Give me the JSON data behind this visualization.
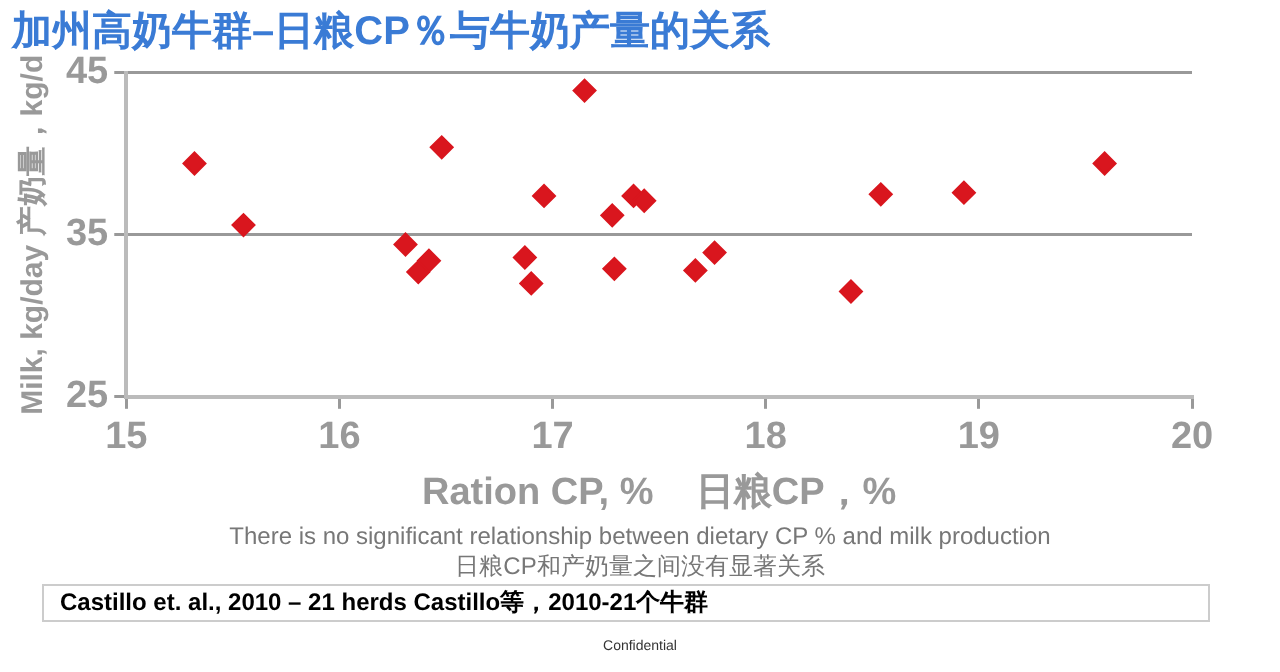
{
  "chart_data": {
    "type": "scatter",
    "title": "加州高奶牛群–日粮CP％与牛奶产量的关系",
    "xlabel": "Ration CP, %    日粮CP，%",
    "ylabel": "Milk, kg/day 产奶量，kg/d",
    "series": [
      {
        "color": "#d9161e",
        "x": [
          15.32,
          15.55,
          16.31,
          16.37,
          16.42,
          16.48,
          16.87,
          16.9,
          16.96,
          17.15,
          17.28,
          17.29,
          17.38,
          17.43,
          17.67,
          17.76,
          18.4,
          18.54,
          18.91,
          18.93,
          19.59
        ],
        "values": [
          39.4,
          35.6,
          34.4,
          32.7,
          33.4,
          40.4,
          33.6,
          32.0,
          37.4,
          43.9,
          36.2,
          32.9,
          37.4,
          37.1,
          32.8,
          33.9,
          31.5,
          37.5,
          null,
          37.6,
          39.4
        ]
      }
    ],
    "xlim": [
      15,
      20
    ],
    "xticks": [
      15,
      16,
      17,
      18,
      19,
      20
    ],
    "ylim": [
      25,
      45
    ],
    "yticks": [
      25,
      35,
      45
    ],
    "grid": "y",
    "marker": "diamond",
    "legend": false,
    "annotations": [
      "There is no significant relationship between dietary CP % and milk production",
      "日粮CP和产奶量之间没有显著关系",
      "Castillo et. al., 2010 – 21 herds Castillo等，2010-21个牛群",
      "Confidential"
    ]
  }
}
